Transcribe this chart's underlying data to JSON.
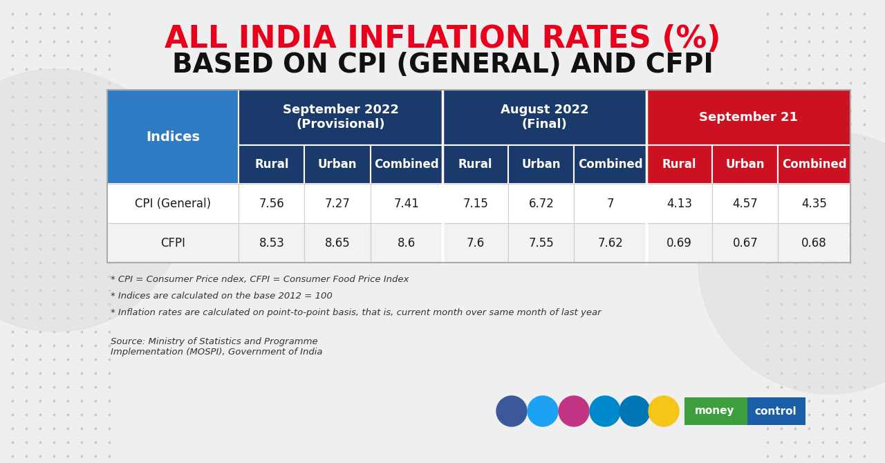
{
  "title_line1": "ALL INDIA INFLATION RATES (%)",
  "title_line2": "BASED ON CPI (GENERAL) AND CFPI",
  "title_line1_color": "#e8001c",
  "title_line2_color": "#111111",
  "col_group_headers": [
    "September 2022\n(Provisional)",
    "August 2022\n(Final)",
    "September 21"
  ],
  "col_group_colors": [
    "#1a3a6b",
    "#1a3a6b",
    "#cc1122"
  ],
  "col_sub_headers": [
    "Rural",
    "Urban",
    "Combined",
    "Rural",
    "Urban",
    "Combined",
    "Rural",
    "Urban",
    "Combined"
  ],
  "col_sub_header_colors_g1": "#1a3a6b",
  "col_sub_header_colors_g2": "#1a3a6b",
  "col_sub_header_colors_g3": "#cc1122",
  "indices_header_color": "#2e7bc4",
  "row_labels": [
    "CPI (General)",
    "CFPI"
  ],
  "data": [
    [
      "7.56",
      "7.27",
      "7.41",
      "7.15",
      "6.72",
      "7",
      "4.13",
      "4.57",
      "4.35"
    ],
    [
      "8.53",
      "8.65",
      "8.6",
      "7.6",
      "7.55",
      "7.62",
      "0.69",
      "0.67",
      "0.68"
    ]
  ],
  "footnotes": [
    "* CPI = Consumer Price ndex, CFPI = Consumer Food Price Index",
    "* Indices are calculated on the base 2012 = 100",
    "* Inflation rates are calculated on point-to-point basis, that is, current month over same month of last year"
  ],
  "source_text": "Source: Ministry of Statistics and Programme\nImplementation (MOSPI), Government of India",
  "bg_color": "#efefef",
  "row_bg_colors": [
    "#ffffff",
    "#f2f2f2"
  ],
  "icon_colors": [
    "#3b5998",
    "#1da1f2",
    "#c13584",
    "#0088cc",
    "#0077b5",
    "#f5c518"
  ],
  "mc_green": "#3d9e3d",
  "mc_blue": "#1a5ea8"
}
